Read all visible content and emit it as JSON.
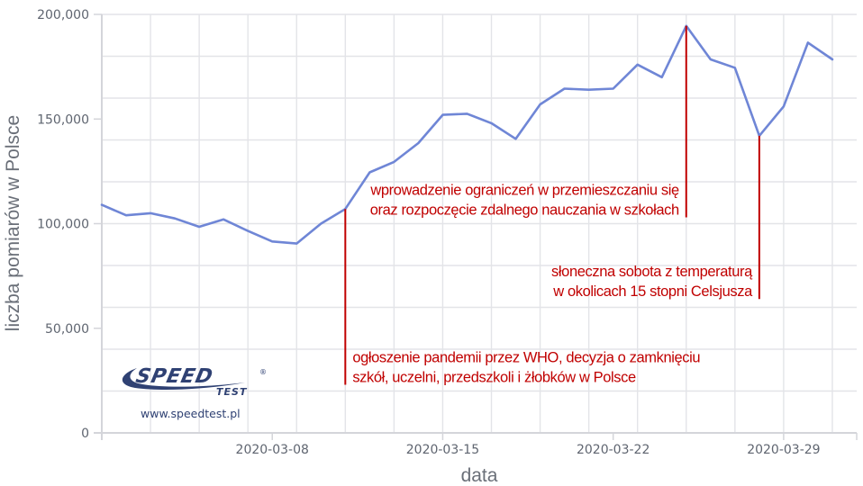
{
  "chart_data": {
    "type": "line",
    "title": "",
    "xlabel": "data",
    "ylabel": "liczba pomiarów w Polsce",
    "ylim": [
      0,
      200000
    ],
    "xlim": [
      "2020-03-01",
      "2020-04-01"
    ],
    "grid": true,
    "legend": null,
    "y_ticks": [
      0,
      50000,
      100000,
      150000,
      200000
    ],
    "y_tick_labels": [
      "0",
      "50,000",
      "100,000",
      "150,000",
      "200,000"
    ],
    "y_gridlines_every": 20000,
    "x_ticks": [
      "2020-03-08",
      "2020-03-15",
      "2020-03-22",
      "2020-03-29"
    ],
    "x_gridlines_every_days": 2,
    "series": [
      {
        "name": "liczba pomiarów",
        "color": "#6f86d6",
        "x": [
          "2020-03-01",
          "2020-03-02",
          "2020-03-03",
          "2020-03-04",
          "2020-03-05",
          "2020-03-06",
          "2020-03-07",
          "2020-03-08",
          "2020-03-09",
          "2020-03-10",
          "2020-03-11",
          "2020-03-12",
          "2020-03-13",
          "2020-03-14",
          "2020-03-15",
          "2020-03-16",
          "2020-03-17",
          "2020-03-18",
          "2020-03-19",
          "2020-03-20",
          "2020-03-21",
          "2020-03-22",
          "2020-03-23",
          "2020-03-24",
          "2020-03-25",
          "2020-03-26",
          "2020-03-27",
          "2020-03-28",
          "2020-03-29",
          "2020-03-30",
          "2020-03-31"
        ],
        "values": [
          109000,
          104000,
          105000,
          102500,
          98500,
          102000,
          96500,
          91500,
          90500,
          100000,
          107000,
          124500,
          129500,
          138500,
          152000,
          152500,
          148000,
          140500,
          157000,
          164500,
          164000,
          164500,
          176000,
          170000,
          194500,
          178500,
          174500,
          142000,
          156000,
          186500,
          178500
        ]
      }
    ],
    "annotations": [
      {
        "date": "2020-03-11",
        "value": 107000,
        "line_to": 23000,
        "align": "left",
        "color": "#c00000",
        "lines": [
          "ogłoszenie pandemii przez WHO, decyzja o zamknięciu",
          "szkół, uczelni, przedszkoli i żłobków w Polsce"
        ]
      },
      {
        "date": "2020-03-25",
        "value": 194500,
        "line_to": 103000,
        "align": "right",
        "color": "#c00000",
        "lines": [
          "wprowadzenie ograniczeń w przemieszczaniu się",
          "oraz rozpoczęcie zdalnego nauczania w szkołach"
        ]
      },
      {
        "date": "2020-03-28",
        "value": 142000,
        "line_to": 64000,
        "align": "right",
        "color": "#c00000",
        "lines": [
          "słoneczna sobota z temperaturą",
          "w okolicach 15 stopni Celsjusza"
        ]
      }
    ]
  },
  "logo": {
    "brand_word": "SPEED",
    "sub_word": "TEST",
    "registered_mark": "®",
    "url": "www.speedtest.pl",
    "color": "#2f4173"
  }
}
